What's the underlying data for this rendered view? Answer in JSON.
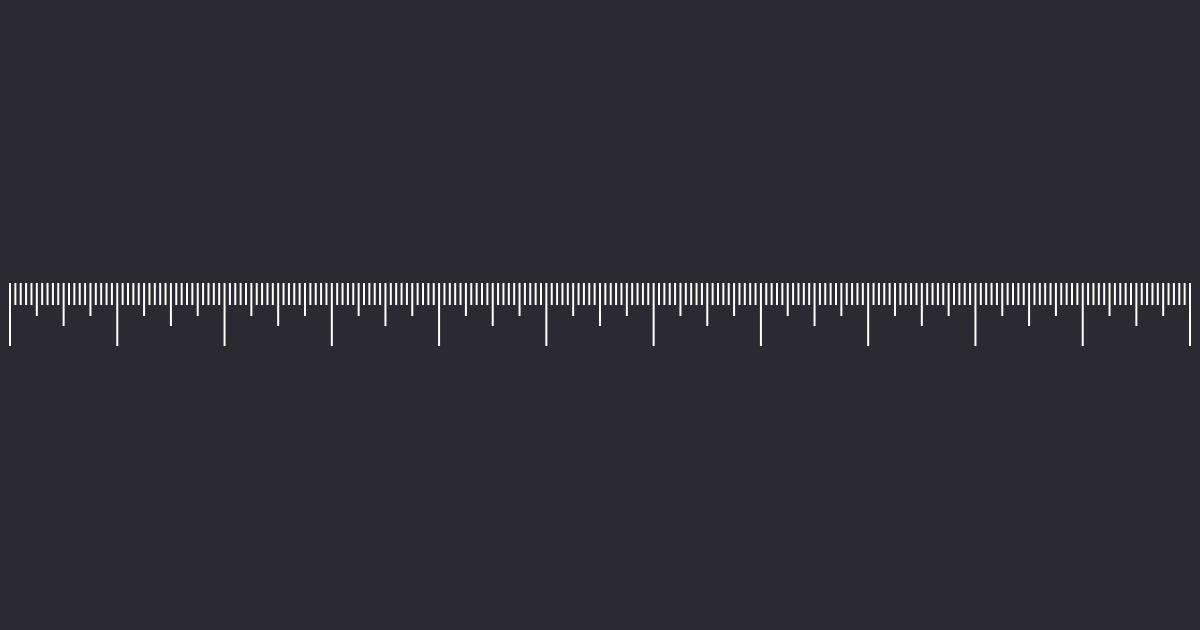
{
  "colors": {
    "background": "#2b2a33",
    "tick": "#ffffff"
  },
  "ruler": {
    "orientation": "horizontal",
    "labels_visible": false,
    "major_units": 11,
    "subdivisions_per_major": 20,
    "tick_hierarchy": [
      "major",
      "half",
      "quarter",
      "minor"
    ]
  }
}
